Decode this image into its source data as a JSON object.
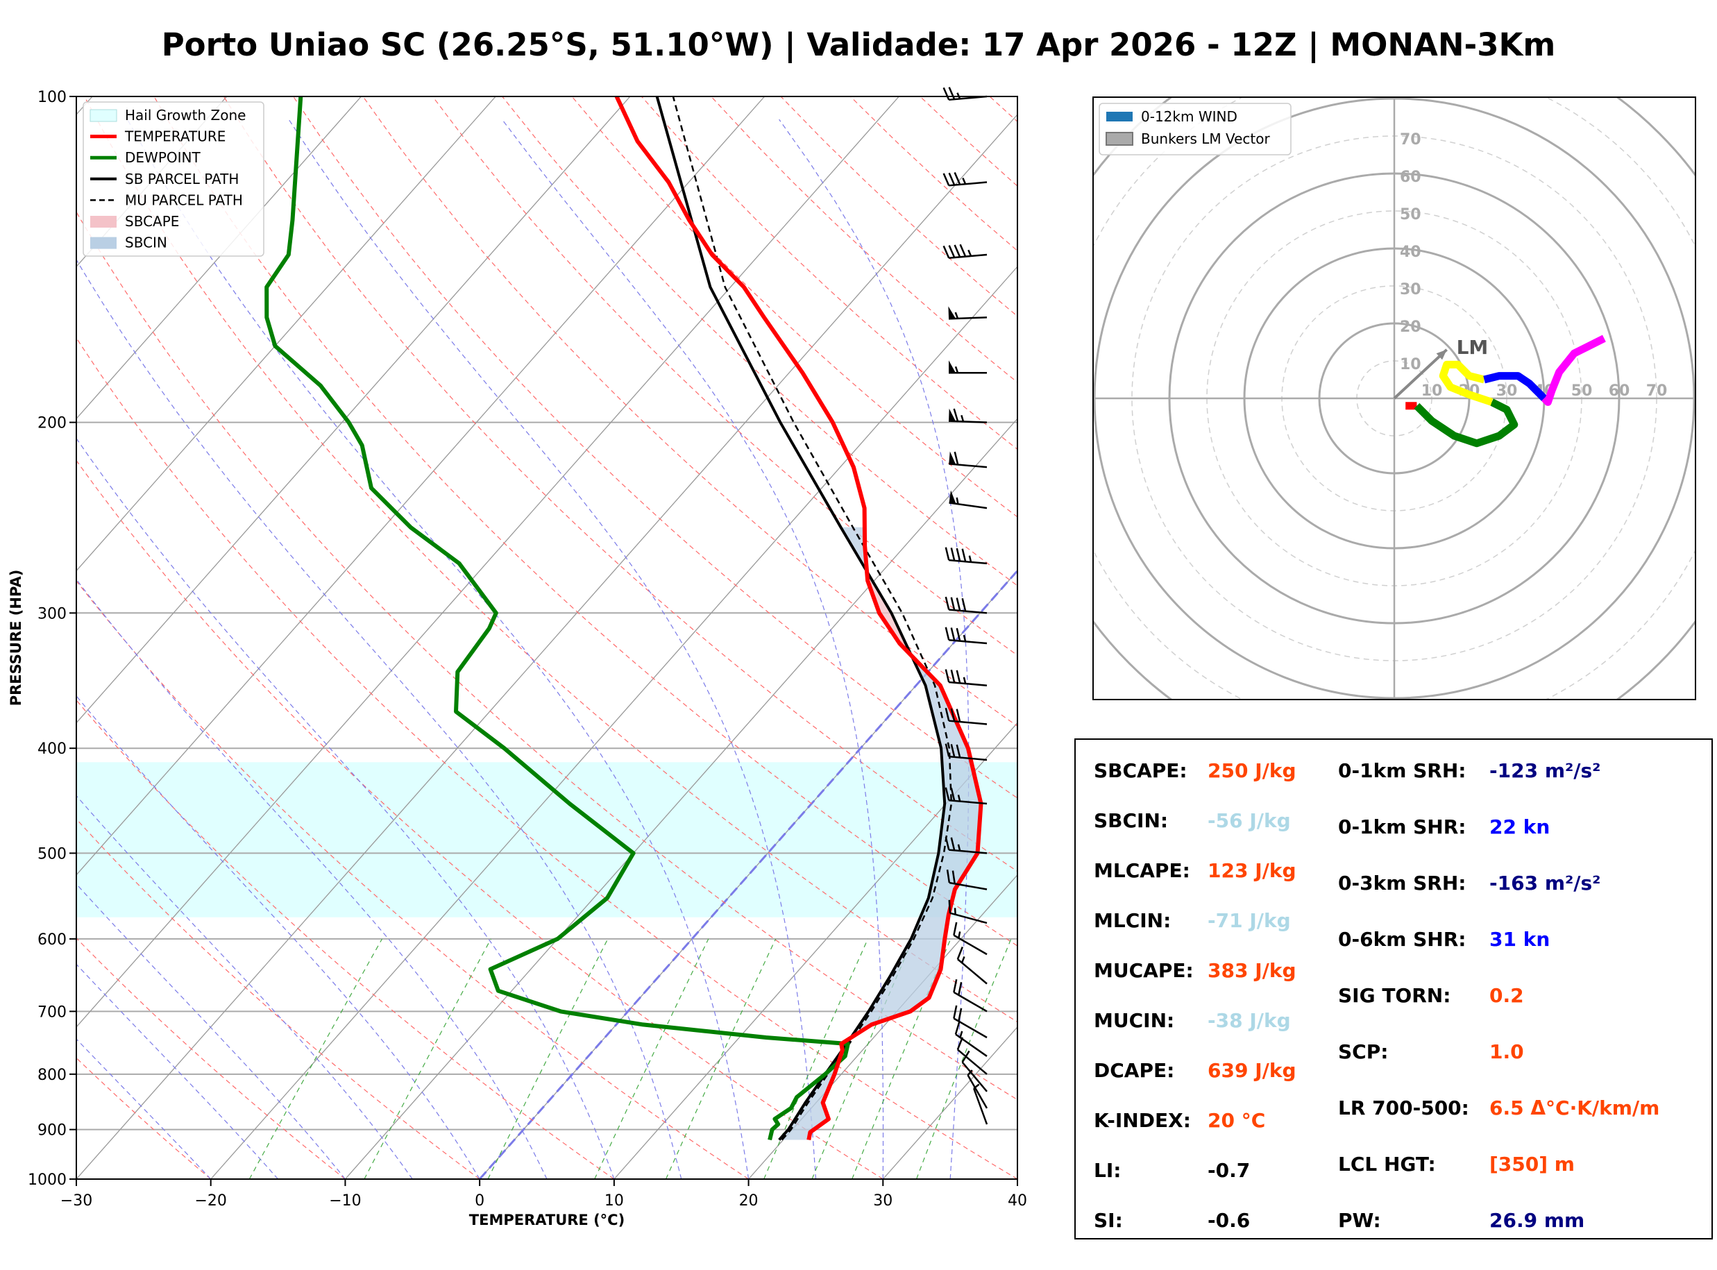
{
  "title": "Porto Uniao SC (26.25°S, 51.10°W) | Validade: 17 Apr 2026 - 12Z | MONAN-3Km",
  "colors": {
    "temperature": "#ff0000",
    "dewpoint": "#008000",
    "hail_zone": "#e0ffff",
    "sbcape": "#f4c2c8",
    "sbcin": "#b9cfe4",
    "value_orange": "#ff4500",
    "value_lightblue": "#add8e6",
    "value_navy": "#000080",
    "value_blue": "#0000ff",
    "value_black": "#000000"
  },
  "chart_data": [
    {
      "type": "line",
      "subtype": "skew-t",
      "xlabel": "TEMPERATURE (°C)",
      "ylabel": "PRESSURE (HPA)",
      "xlim": [
        -30,
        40
      ],
      "ylim": [
        1000,
        100
      ],
      "xticks": [
        -30,
        -20,
        -10,
        0,
        10,
        20,
        30,
        40
      ],
      "xtick_labels": [
        "−30",
        "−20",
        "−10",
        "0",
        "10",
        "20",
        "30",
        "40"
      ],
      "yticks": [
        1000,
        900,
        800,
        700,
        600,
        500,
        400,
        300,
        200,
        100
      ],
      "legend": [
        "Hail Growth Zone",
        "TEMPERATURE",
        "DEWPOINT",
        "SB PARCEL PATH",
        "MU PARCEL PATH",
        "SBCAPE",
        "SBCIN"
      ],
      "hail_growth_zone": {
        "p_bottom": 573,
        "p_top": 412
      },
      "temperature": [
        [
          920,
          21.9
        ],
        [
          905,
          21.5
        ],
        [
          880,
          22.0
        ],
        [
          850,
          20.5
        ],
        [
          800,
          19.5
        ],
        [
          760,
          18.5
        ],
        [
          750,
          18.0
        ],
        [
          720,
          19.0
        ],
        [
          700,
          21.0
        ],
        [
          680,
          21.5
        ],
        [
          640,
          20.5
        ],
        [
          600,
          18.8
        ],
        [
          570,
          17.5
        ],
        [
          540,
          16.3
        ],
        [
          500,
          15.6
        ],
        [
          450,
          12.6
        ],
        [
          400,
          8.0
        ],
        [
          350,
          1.8
        ],
        [
          320,
          -4.0
        ],
        [
          300,
          -7.5
        ],
        [
          280,
          -10.5
        ],
        [
          260,
          -13.0
        ],
        [
          240,
          -15.5
        ],
        [
          220,
          -19.0
        ],
        [
          200,
          -23.5
        ],
        [
          180,
          -29.0
        ],
        [
          160,
          -35.5
        ],
        [
          150,
          -39.0
        ],
        [
          140,
          -43.5
        ],
        [
          130,
          -47.5
        ],
        [
          120,
          -51.5
        ],
        [
          110,
          -56.5
        ],
        [
          100,
          -61.0
        ]
      ],
      "dewpoint": [
        [
          920,
          19.0
        ],
        [
          900,
          18.5
        ],
        [
          890,
          18.6
        ],
        [
          880,
          18.0
        ],
        [
          860,
          18.5
        ],
        [
          840,
          18.2
        ],
        [
          800,
          18.8
        ],
        [
          770,
          19.1
        ],
        [
          750,
          18.5
        ],
        [
          740,
          12.0
        ],
        [
          720,
          2.0
        ],
        [
          700,
          -5.0
        ],
        [
          670,
          -11.0
        ],
        [
          640,
          -13.0
        ],
        [
          600,
          -10.0
        ],
        [
          550,
          -9.0
        ],
        [
          500,
          -10.0
        ],
        [
          450,
          -18.0
        ],
        [
          400,
          -26.5
        ],
        [
          370,
          -32.5
        ],
        [
          340,
          -35.0
        ],
        [
          310,
          -35.5
        ],
        [
          300,
          -36.0
        ],
        [
          270,
          -42.0
        ],
        [
          250,
          -48.0
        ],
        [
          230,
          -53.5
        ],
        [
          210,
          -57.0
        ],
        [
          200,
          -59.5
        ],
        [
          185,
          -64.0
        ],
        [
          170,
          -70.0
        ],
        [
          160,
          -72.5
        ],
        [
          150,
          -74.5
        ],
        [
          140,
          -75.0
        ],
        [
          130,
          -77.0
        ],
        [
          100,
          -84.5
        ]
      ],
      "sb_parcel": [
        [
          920,
          19.7
        ],
        [
          900,
          19.7
        ],
        [
          850,
          19.2
        ],
        [
          800,
          18.8
        ],
        [
          750,
          18.4
        ],
        [
          700,
          17.9
        ],
        [
          650,
          17.2
        ],
        [
          600,
          16.3
        ],
        [
          550,
          14.9
        ],
        [
          500,
          12.7
        ],
        [
          450,
          9.9
        ],
        [
          400,
          6.0
        ],
        [
          350,
          0.7
        ],
        [
          300,
          -6.6
        ],
        [
          250,
          -16.0
        ],
        [
          200,
          -27.4
        ],
        [
          150,
          -41.5
        ],
        [
          100,
          -58.0
        ]
      ],
      "mu_parcel": [
        [
          920,
          19.9
        ],
        [
          900,
          19.9
        ],
        [
          850,
          19.4
        ],
        [
          800,
          19.0
        ],
        [
          750,
          18.6
        ],
        [
          700,
          18.1
        ],
        [
          650,
          17.4
        ],
        [
          600,
          16.5
        ],
        [
          550,
          15.2
        ],
        [
          500,
          13.1
        ],
        [
          450,
          10.4
        ],
        [
          400,
          6.6
        ],
        [
          350,
          1.4
        ],
        [
          300,
          -5.8
        ],
        [
          250,
          -15.1
        ],
        [
          200,
          -26.4
        ],
        [
          150,
          -40.4
        ],
        [
          100,
          -56.8
        ]
      ],
      "wind_barbs_knots": [
        [
          100,
          265,
          25
        ],
        [
          120,
          265,
          35
        ],
        [
          140,
          265,
          45
        ],
        [
          160,
          268,
          55
        ],
        [
          180,
          270,
          55
        ],
        [
          200,
          272,
          65
        ],
        [
          220,
          275,
          60
        ],
        [
          240,
          278,
          55
        ],
        [
          270,
          275,
          45
        ],
        [
          300,
          275,
          40
        ],
        [
          320,
          275,
          35
        ],
        [
          350,
          275,
          35
        ],
        [
          380,
          275,
          30
        ],
        [
          410,
          275,
          30
        ],
        [
          450,
          275,
          25
        ],
        [
          500,
          275,
          25
        ],
        [
          540,
          280,
          20
        ],
        [
          580,
          285,
          15
        ],
        [
          620,
          300,
          15
        ],
        [
          660,
          310,
          15
        ],
        [
          700,
          300,
          20
        ],
        [
          740,
          300,
          20
        ],
        [
          770,
          305,
          15
        ],
        [
          800,
          310,
          10
        ],
        [
          830,
          320,
          10
        ],
        [
          860,
          330,
          8
        ],
        [
          890,
          340,
          5
        ]
      ]
    },
    {
      "type": "scatter",
      "subtype": "hodograph",
      "legend": [
        "0-12km WIND",
        "Bunkers LM Vector"
      ],
      "ring_labels": [
        "10",
        "20",
        "30",
        "40",
        "50",
        "60",
        "70"
      ],
      "lm_label": "LM",
      "lm_vector": [
        14,
        13
      ],
      "segments": [
        {
          "color": "#ff0000",
          "points": [
            [
              3,
              -2
            ],
            [
              6,
              -2
            ]
          ]
        },
        {
          "color": "#008000",
          "points": [
            [
              6,
              -2
            ],
            [
              10,
              -6
            ],
            [
              16,
              -10
            ],
            [
              22,
              -12
            ],
            [
              28,
              -10
            ],
            [
              32,
              -7
            ],
            [
              30,
              -3
            ],
            [
              26,
              -1
            ]
          ]
        },
        {
          "color": "#ffff00",
          "points": [
            [
              26,
              -1
            ],
            [
              20,
              1
            ],
            [
              15,
              3
            ],
            [
              13,
              6
            ],
            [
              14,
              9
            ],
            [
              17,
              9
            ],
            [
              20,
              6
            ],
            [
              24,
              5
            ]
          ]
        },
        {
          "color": "#0000ff",
          "points": [
            [
              24,
              5
            ],
            [
              28,
              6
            ],
            [
              33,
              6
            ],
            [
              36,
              4
            ],
            [
              38,
              2
            ],
            [
              40,
              0
            ]
          ]
        },
        {
          "color": "#ff00ff",
          "points": [
            [
              40,
              0
            ],
            [
              41,
              -1
            ],
            [
              42,
              2
            ],
            [
              44,
              7
            ],
            [
              48,
              12
            ],
            [
              56,
              16
            ]
          ]
        }
      ]
    }
  ],
  "stats": [
    {
      "label": "SBCAPE:",
      "value": "250 J/kg",
      "color": "#ff4500"
    },
    {
      "label": "SBCIN:",
      "value": "-56 J/kg",
      "color": "#add8e6"
    },
    {
      "label": "MLCAPE:",
      "value": "123 J/kg",
      "color": "#ff4500"
    },
    {
      "label": "MLCIN:",
      "value": "-71 J/kg",
      "color": "#add8e6"
    },
    {
      "label": "MUCAPE:",
      "value": "383 J/kg",
      "color": "#ff4500"
    },
    {
      "label": "MUCIN:",
      "value": "-38 J/kg",
      "color": "#add8e6"
    },
    {
      "label": "DCAPE:",
      "value": "639 J/kg",
      "color": "#ff4500"
    },
    {
      "label": "K-INDEX:",
      "value": "20 °C",
      "color": "#ff4500"
    },
    {
      "label": "LI:",
      "value": "-0.7",
      "color": "#000000"
    },
    {
      "label": "SI:",
      "value": "-0.6",
      "color": "#000000"
    },
    {
      "label": "0-1km SRH:",
      "value": "-123 m²/s²",
      "color": "#000080"
    },
    {
      "label": "0-1km SHR:",
      "value": "22 kn",
      "color": "#0000ff"
    },
    {
      "label": "0-3km SRH:",
      "value": "-163 m²/s²",
      "color": "#000080"
    },
    {
      "label": "0-6km SHR:",
      "value": "31 kn",
      "color": "#0000ff"
    },
    {
      "label": "SIG TORN:",
      "value": "0.2",
      "color": "#ff4500"
    },
    {
      "label": "SCP:",
      "value": "1.0",
      "color": "#ff4500"
    },
    {
      "label": "LR 700-500:",
      "value": "6.5 Δ°C·K/km/m",
      "color": "#ff4500"
    },
    {
      "label": "LCL HGT:",
      "value": "[350] m",
      "color": "#ff4500"
    },
    {
      "label": "PW:",
      "value": "26.9 mm",
      "color": "#000080"
    }
  ]
}
